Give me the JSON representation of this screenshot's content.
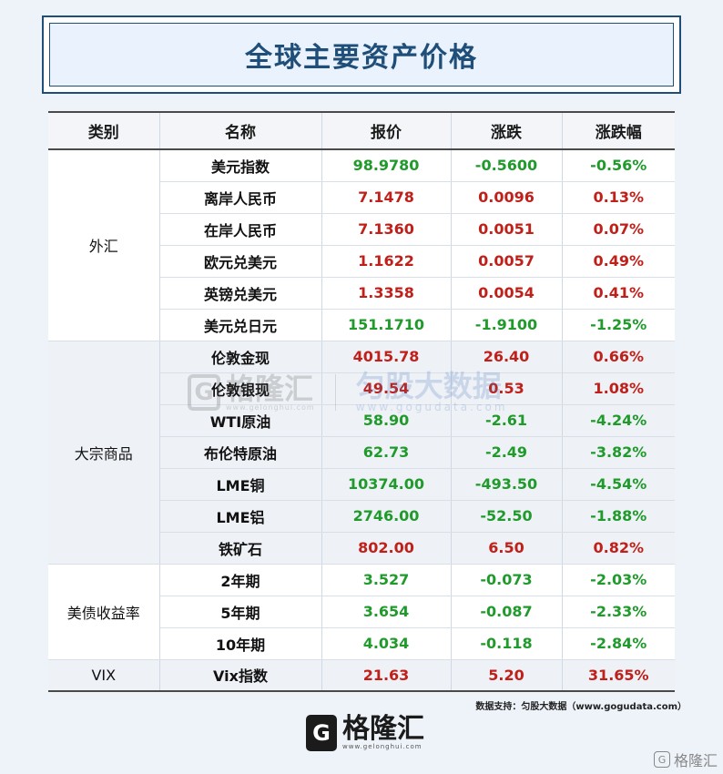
{
  "title": "全球主要资产价格",
  "columns": [
    "类别",
    "名称",
    "报价",
    "涨跌",
    "涨跌幅"
  ],
  "groups": [
    {
      "category": "外汇",
      "rows": [
        {
          "name": "美元指数",
          "price": "98.9780",
          "change": "-0.5600",
          "pct": "-0.56%"
        },
        {
          "name": "离岸人民币",
          "price": "7.1478",
          "change": "0.0096",
          "pct": "0.13%"
        },
        {
          "name": "在岸人民币",
          "price": "7.1360",
          "change": "0.0051",
          "pct": "0.07%"
        },
        {
          "name": "欧元兑美元",
          "price": "1.1622",
          "change": "0.0057",
          "pct": "0.49%"
        },
        {
          "name": "英镑兑美元",
          "price": "1.3358",
          "change": "0.0054",
          "pct": "0.41%"
        },
        {
          "name": "美元兑日元",
          "price": "151.1710",
          "change": "-1.9100",
          "pct": "-1.25%"
        }
      ]
    },
    {
      "category": "大宗商品",
      "rows": [
        {
          "name": "伦敦金现",
          "price": "4015.78",
          "change": "26.40",
          "pct": "0.66%"
        },
        {
          "name": "伦敦银现",
          "price": "49.54",
          "change": "0.53",
          "pct": "1.08%"
        },
        {
          "name": "WTI原油",
          "price": "58.90",
          "change": "-2.61",
          "pct": "-4.24%"
        },
        {
          "name": "布伦特原油",
          "price": "62.73",
          "change": "-2.49",
          "pct": "-3.82%"
        },
        {
          "name": "LME铜",
          "price": "10374.00",
          "change": "-493.50",
          "pct": "-4.54%"
        },
        {
          "name": "LME铝",
          "price": "2746.00",
          "change": "-52.50",
          "pct": "-1.88%"
        },
        {
          "name": "铁矿石",
          "price": "802.00",
          "change": "6.50",
          "pct": "0.82%"
        }
      ]
    },
    {
      "category": "美债收益率",
      "rows": [
        {
          "name": "2年期",
          "price": "3.527",
          "change": "-0.073",
          "pct": "-2.03%"
        },
        {
          "name": "5年期",
          "price": "3.654",
          "change": "-0.087",
          "pct": "-2.33%"
        },
        {
          "name": "10年期",
          "price": "4.034",
          "change": "-0.118",
          "pct": "-2.84%"
        }
      ]
    },
    {
      "category": "VIX",
      "rows": [
        {
          "name": "Vix指数",
          "price": "21.63",
          "change": "5.20",
          "pct": "31.65%"
        }
      ]
    }
  ],
  "source": "数据支持：匀股大数据（www.gogudata.com）",
  "watermark": {
    "brand": "格隆汇",
    "brand_url": "www.gelonghui.com",
    "brand2": "匀股大数据",
    "brand2_url": "www.gogudata.com"
  },
  "footer_logo": {
    "glyph": "G",
    "brand": "格隆汇",
    "url": "www.gelonghui.com"
  },
  "corner_mark": "格隆汇",
  "colors": {
    "up": "#c0201a",
    "down": "#1f9a2b",
    "title": "#1f4e79"
  }
}
